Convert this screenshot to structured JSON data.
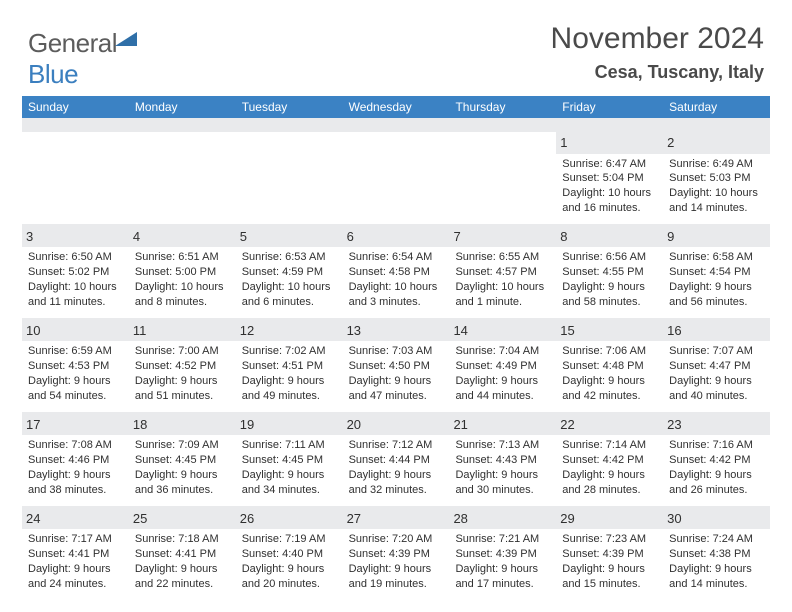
{
  "logo": {
    "text1": "General",
    "text2": "Blue"
  },
  "title": "November 2024",
  "location": "Cesa, Tuscany, Italy",
  "colors": {
    "header_bg": "#3b82c4",
    "header_fg": "#ffffff",
    "daynum_bg": "#e9eaec",
    "page_bg": "#ffffff",
    "text": "#303030",
    "logo_grey": "#5c5c5c",
    "logo_blue": "#3b7fbf"
  },
  "day_headers": [
    "Sunday",
    "Monday",
    "Tuesday",
    "Wednesday",
    "Thursday",
    "Friday",
    "Saturday"
  ],
  "weeks": [
    [
      {
        "blank": true
      },
      {
        "blank": true
      },
      {
        "blank": true
      },
      {
        "blank": true
      },
      {
        "blank": true
      },
      {
        "day": "1",
        "sunrise": "Sunrise: 6:47 AM",
        "sunset": "Sunset: 5:04 PM",
        "dl1": "Daylight: 10 hours",
        "dl2": "and 16 minutes."
      },
      {
        "day": "2",
        "sunrise": "Sunrise: 6:49 AM",
        "sunset": "Sunset: 5:03 PM",
        "dl1": "Daylight: 10 hours",
        "dl2": "and 14 minutes."
      }
    ],
    [
      {
        "day": "3",
        "sunrise": "Sunrise: 6:50 AM",
        "sunset": "Sunset: 5:02 PM",
        "dl1": "Daylight: 10 hours",
        "dl2": "and 11 minutes."
      },
      {
        "day": "4",
        "sunrise": "Sunrise: 6:51 AM",
        "sunset": "Sunset: 5:00 PM",
        "dl1": "Daylight: 10 hours",
        "dl2": "and 8 minutes."
      },
      {
        "day": "5",
        "sunrise": "Sunrise: 6:53 AM",
        "sunset": "Sunset: 4:59 PM",
        "dl1": "Daylight: 10 hours",
        "dl2": "and 6 minutes."
      },
      {
        "day": "6",
        "sunrise": "Sunrise: 6:54 AM",
        "sunset": "Sunset: 4:58 PM",
        "dl1": "Daylight: 10 hours",
        "dl2": "and 3 minutes."
      },
      {
        "day": "7",
        "sunrise": "Sunrise: 6:55 AM",
        "sunset": "Sunset: 4:57 PM",
        "dl1": "Daylight: 10 hours",
        "dl2": "and 1 minute."
      },
      {
        "day": "8",
        "sunrise": "Sunrise: 6:56 AM",
        "sunset": "Sunset: 4:55 PM",
        "dl1": "Daylight: 9 hours",
        "dl2": "and 58 minutes."
      },
      {
        "day": "9",
        "sunrise": "Sunrise: 6:58 AM",
        "sunset": "Sunset: 4:54 PM",
        "dl1": "Daylight: 9 hours",
        "dl2": "and 56 minutes."
      }
    ],
    [
      {
        "day": "10",
        "sunrise": "Sunrise: 6:59 AM",
        "sunset": "Sunset: 4:53 PM",
        "dl1": "Daylight: 9 hours",
        "dl2": "and 54 minutes."
      },
      {
        "day": "11",
        "sunrise": "Sunrise: 7:00 AM",
        "sunset": "Sunset: 4:52 PM",
        "dl1": "Daylight: 9 hours",
        "dl2": "and 51 minutes."
      },
      {
        "day": "12",
        "sunrise": "Sunrise: 7:02 AM",
        "sunset": "Sunset: 4:51 PM",
        "dl1": "Daylight: 9 hours",
        "dl2": "and 49 minutes."
      },
      {
        "day": "13",
        "sunrise": "Sunrise: 7:03 AM",
        "sunset": "Sunset: 4:50 PM",
        "dl1": "Daylight: 9 hours",
        "dl2": "and 47 minutes."
      },
      {
        "day": "14",
        "sunrise": "Sunrise: 7:04 AM",
        "sunset": "Sunset: 4:49 PM",
        "dl1": "Daylight: 9 hours",
        "dl2": "and 44 minutes."
      },
      {
        "day": "15",
        "sunrise": "Sunrise: 7:06 AM",
        "sunset": "Sunset: 4:48 PM",
        "dl1": "Daylight: 9 hours",
        "dl2": "and 42 minutes."
      },
      {
        "day": "16",
        "sunrise": "Sunrise: 7:07 AM",
        "sunset": "Sunset: 4:47 PM",
        "dl1": "Daylight: 9 hours",
        "dl2": "and 40 minutes."
      }
    ],
    [
      {
        "day": "17",
        "sunrise": "Sunrise: 7:08 AM",
        "sunset": "Sunset: 4:46 PM",
        "dl1": "Daylight: 9 hours",
        "dl2": "and 38 minutes."
      },
      {
        "day": "18",
        "sunrise": "Sunrise: 7:09 AM",
        "sunset": "Sunset: 4:45 PM",
        "dl1": "Daylight: 9 hours",
        "dl2": "and 36 minutes."
      },
      {
        "day": "19",
        "sunrise": "Sunrise: 7:11 AM",
        "sunset": "Sunset: 4:45 PM",
        "dl1": "Daylight: 9 hours",
        "dl2": "and 34 minutes."
      },
      {
        "day": "20",
        "sunrise": "Sunrise: 7:12 AM",
        "sunset": "Sunset: 4:44 PM",
        "dl1": "Daylight: 9 hours",
        "dl2": "and 32 minutes."
      },
      {
        "day": "21",
        "sunrise": "Sunrise: 7:13 AM",
        "sunset": "Sunset: 4:43 PM",
        "dl1": "Daylight: 9 hours",
        "dl2": "and 30 minutes."
      },
      {
        "day": "22",
        "sunrise": "Sunrise: 7:14 AM",
        "sunset": "Sunset: 4:42 PM",
        "dl1": "Daylight: 9 hours",
        "dl2": "and 28 minutes."
      },
      {
        "day": "23",
        "sunrise": "Sunrise: 7:16 AM",
        "sunset": "Sunset: 4:42 PM",
        "dl1": "Daylight: 9 hours",
        "dl2": "and 26 minutes."
      }
    ],
    [
      {
        "day": "24",
        "sunrise": "Sunrise: 7:17 AM",
        "sunset": "Sunset: 4:41 PM",
        "dl1": "Daylight: 9 hours",
        "dl2": "and 24 minutes."
      },
      {
        "day": "25",
        "sunrise": "Sunrise: 7:18 AM",
        "sunset": "Sunset: 4:41 PM",
        "dl1": "Daylight: 9 hours",
        "dl2": "and 22 minutes."
      },
      {
        "day": "26",
        "sunrise": "Sunrise: 7:19 AM",
        "sunset": "Sunset: 4:40 PM",
        "dl1": "Daylight: 9 hours",
        "dl2": "and 20 minutes."
      },
      {
        "day": "27",
        "sunrise": "Sunrise: 7:20 AM",
        "sunset": "Sunset: 4:39 PM",
        "dl1": "Daylight: 9 hours",
        "dl2": "and 19 minutes."
      },
      {
        "day": "28",
        "sunrise": "Sunrise: 7:21 AM",
        "sunset": "Sunset: 4:39 PM",
        "dl1": "Daylight: 9 hours",
        "dl2": "and 17 minutes."
      },
      {
        "day": "29",
        "sunrise": "Sunrise: 7:23 AM",
        "sunset": "Sunset: 4:39 PM",
        "dl1": "Daylight: 9 hours",
        "dl2": "and 15 minutes."
      },
      {
        "day": "30",
        "sunrise": "Sunrise: 7:24 AM",
        "sunset": "Sunset: 4:38 PM",
        "dl1": "Daylight: 9 hours",
        "dl2": "and 14 minutes."
      }
    ]
  ]
}
